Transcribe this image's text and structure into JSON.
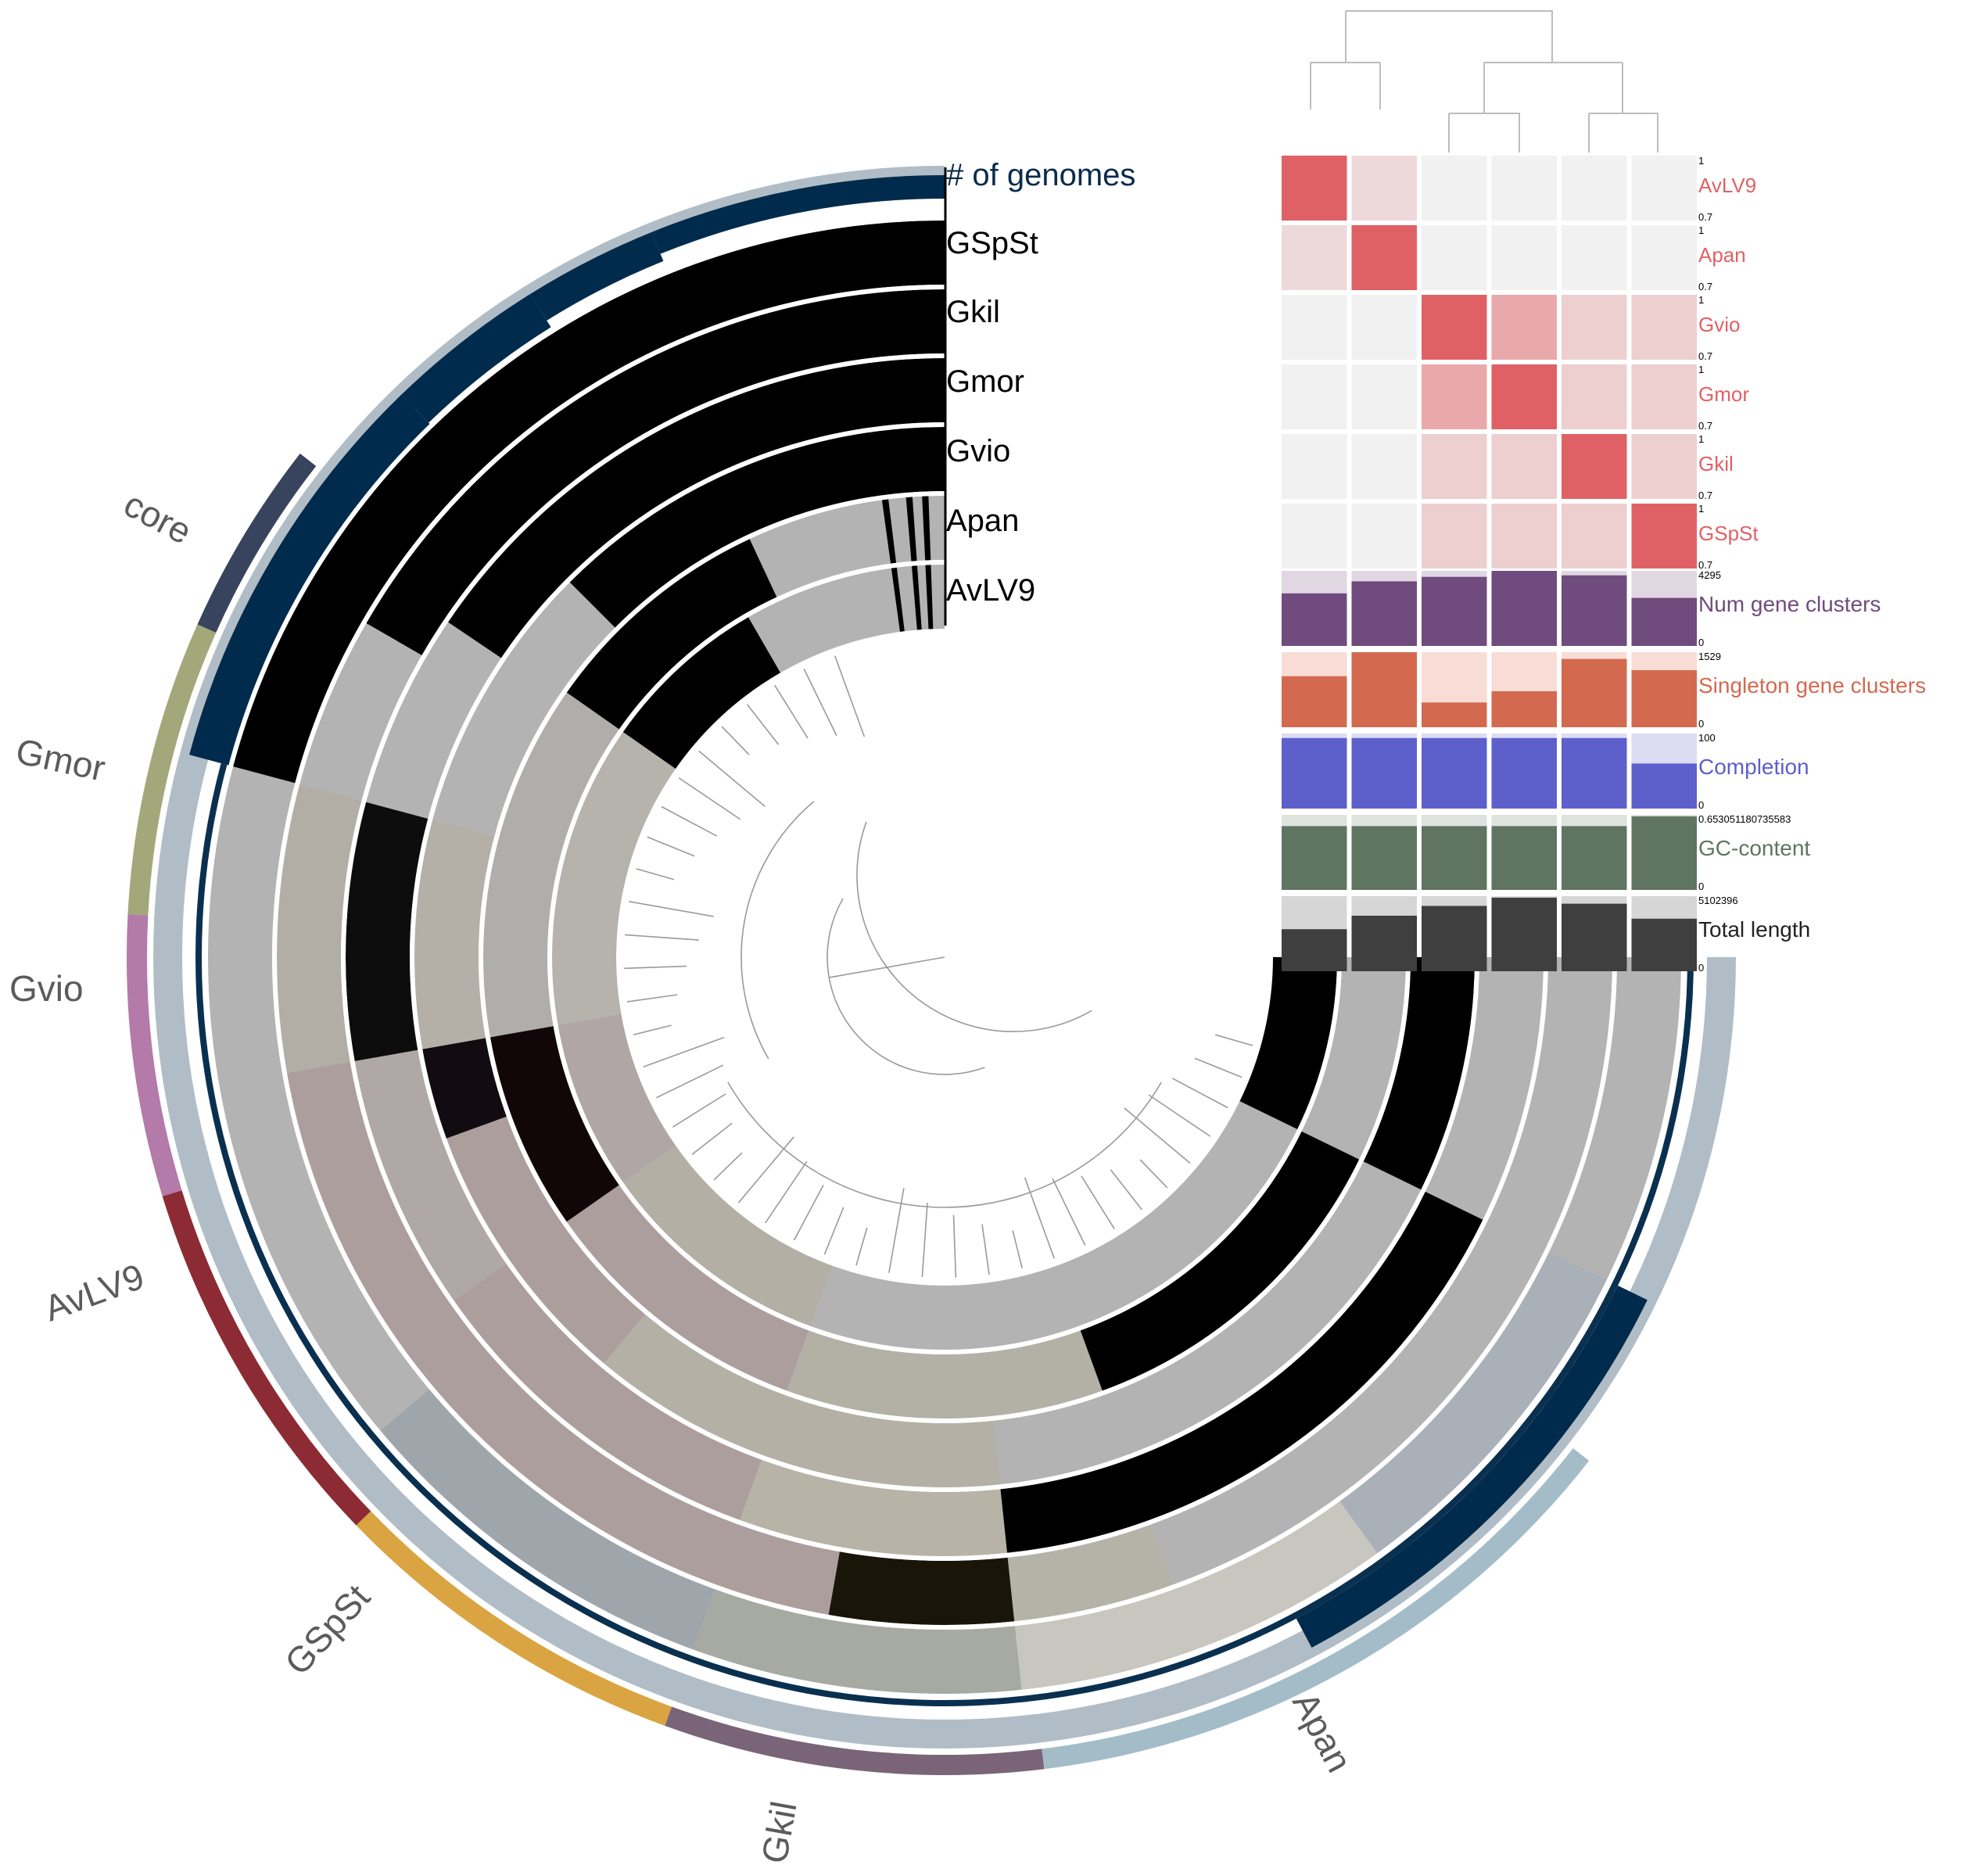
{
  "layers": [
    "# of genomes",
    "GSpSt",
    "Gkil",
    "Gmor",
    "Gvio",
    "Apan",
    "AvLV9"
  ],
  "bins": [
    {
      "name": "core",
      "color": "#38445e"
    },
    {
      "name": "Gmor",
      "color": "#a3a87a"
    },
    {
      "name": "Gvio",
      "color": "#b47aa9"
    },
    {
      "name": "AvLV9",
      "color": "#8c2b33"
    },
    {
      "name": "GSpSt",
      "color": "#d9a441"
    },
    {
      "name": "Gkil",
      "color": "#7a6478"
    },
    {
      "name": "Apan",
      "color": "#a3bcc8"
    }
  ],
  "heatmap": {
    "rows": [
      {
        "label": "AvLV9",
        "max": "1",
        "min": "0.7"
      },
      {
        "label": "Apan",
        "max": "1",
        "min": "0.7"
      },
      {
        "label": "Gvio",
        "max": "1",
        "min": "0.7"
      },
      {
        "label": "Gmor",
        "max": "1",
        "min": "0.7"
      },
      {
        "label": "Gkil",
        "max": "1",
        "min": "0.7"
      },
      {
        "label": "GSpSt",
        "max": "1",
        "min": "0.7"
      }
    ],
    "high_color": "#e06165",
    "low_color": "#f1f1f1"
  },
  "bars": [
    {
      "label": "Num gene clusters",
      "max": "4295",
      "min": "0",
      "color": "#6f4b7e",
      "bg": "#e1d7e3",
      "values": [
        0.7,
        0.86,
        0.92,
        1.0,
        0.94,
        0.64
      ]
    },
    {
      "label": "Singleton gene clusters",
      "max": "1529",
      "min": "0",
      "color": "#d36a50",
      "bg": "#f7ddd6",
      "values": [
        0.68,
        1.0,
        0.33,
        0.48,
        0.91,
        0.76
      ]
    },
    {
      "label": "Completion",
      "max": "100",
      "min": "0",
      "color": "#5d5fcb",
      "bg": "#dcdcf3",
      "values": [
        0.94,
        0.94,
        0.94,
        0.94,
        0.94,
        0.6
      ]
    },
    {
      "label": "GC-content",
      "max": "0.653051180735583",
      "min": "0",
      "color": "#5f7562",
      "bg": "#dfe3df",
      "values": [
        0.85,
        0.85,
        0.85,
        0.85,
        0.85,
        0.98
      ]
    },
    {
      "label": "Total length",
      "max": "5102396",
      "min": "0",
      "color": "#3f3f3f",
      "bg": "#d6d6d6",
      "values": [
        0.56,
        0.74,
        0.87,
        0.98,
        0.9,
        0.7
      ]
    }
  ]
}
